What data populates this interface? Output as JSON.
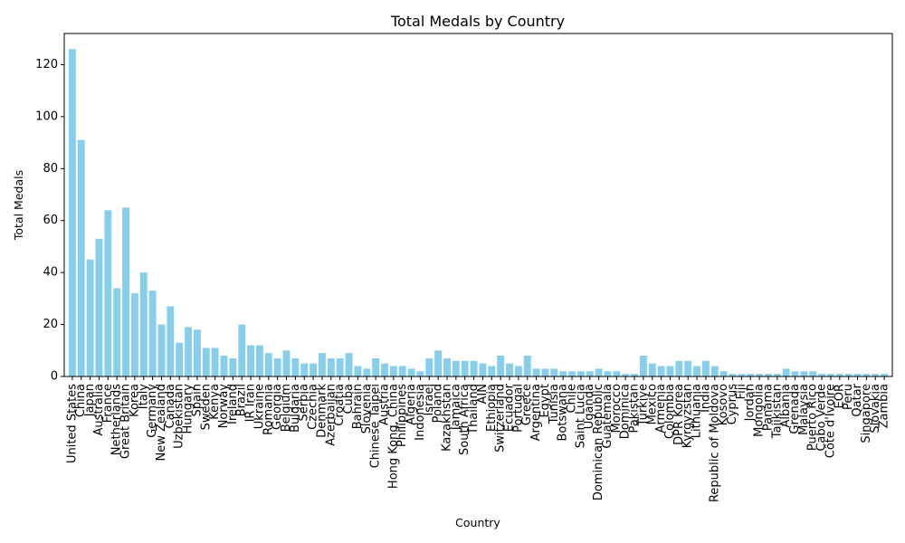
{
  "chart_data": {
    "type": "bar",
    "title": "Total Medals by Country",
    "xlabel": "Country",
    "ylabel": "Total Medals",
    "ylim": [
      0,
      132
    ],
    "yticks": [
      0,
      20,
      40,
      60,
      80,
      100,
      120
    ],
    "grid": false,
    "legend": "none",
    "bar_color": "#87ceeb",
    "categories": [
      "United States",
      "China",
      "Japan",
      "Australia",
      "France",
      "Netherlands",
      "Great Britain",
      "Korea",
      "Italy",
      "Germany",
      "New Zealand",
      "Canada",
      "Uzbekistan",
      "Hungary",
      "Spain",
      "Sweden",
      "Kenya",
      "Norway",
      "Ireland",
      "Brazil",
      "IR Iran",
      "Ukraine",
      "Romania",
      "Georgia",
      "Belgium",
      "Bulgaria",
      "Serbia",
      "Czechia",
      "Denmark",
      "Azerbaijan",
      "Croatia",
      "Cuba",
      "Bahrain",
      "Slovenia",
      "Chinese Taipei",
      "Austria",
      "Hong Kong, China",
      "Philippines",
      "Algeria",
      "Indonesia",
      "Israel",
      "Poland",
      "Kazakhstan",
      "Jamaica",
      "South Africa",
      "Thailand",
      "AIN",
      "Ethiopia",
      "Switzerland",
      "Ecuador",
      "Portugal",
      "Greece",
      "Argentina",
      "Egypt",
      "Tunisia",
      "Botswana",
      "Chile",
      "Saint Lucia",
      "Uganda",
      "Dominican Republic",
      "Guatemala",
      "Morocco",
      "Dominica",
      "Pakistan",
      "Türkiye",
      "Mexico",
      "Armenia",
      "Colombia",
      "DPR Korea",
      "Kyrgyzstan",
      "Lithuania",
      "India",
      "Republic of Moldova",
      "Kosovo",
      "Cyprus",
      "Fiji",
      "Jordan",
      "Mongolia",
      "Panama",
      "Tajikistan",
      "Albania",
      "Grenada",
      "Malaysia",
      "Puerto Rico",
      "Cabo Verde",
      "Côte d'Ivoire",
      "EOR",
      "Peru",
      "Qatar",
      "Singapore",
      "Slovakia",
      "Zambia"
    ],
    "values": [
      126,
      91,
      45,
      53,
      64,
      34,
      65,
      32,
      40,
      33,
      20,
      27,
      13,
      19,
      18,
      11,
      11,
      8,
      7,
      20,
      12,
      12,
      9,
      7,
      10,
      7,
      5,
      5,
      9,
      7,
      7,
      9,
      4,
      3,
      7,
      5,
      4,
      4,
      3,
      2,
      7,
      10,
      7,
      6,
      6,
      6,
      5,
      4,
      8,
      5,
      4,
      8,
      3,
      3,
      3,
      2,
      2,
      2,
      2,
      3,
      2,
      2,
      1,
      1,
      8,
      5,
      4,
      4,
      6,
      6,
      4,
      6,
      4,
      2,
      1,
      1,
      1,
      1,
      1,
      1,
      3,
      2,
      2,
      2,
      1,
      1,
      1,
      1,
      1,
      1,
      1,
      1
    ]
  }
}
